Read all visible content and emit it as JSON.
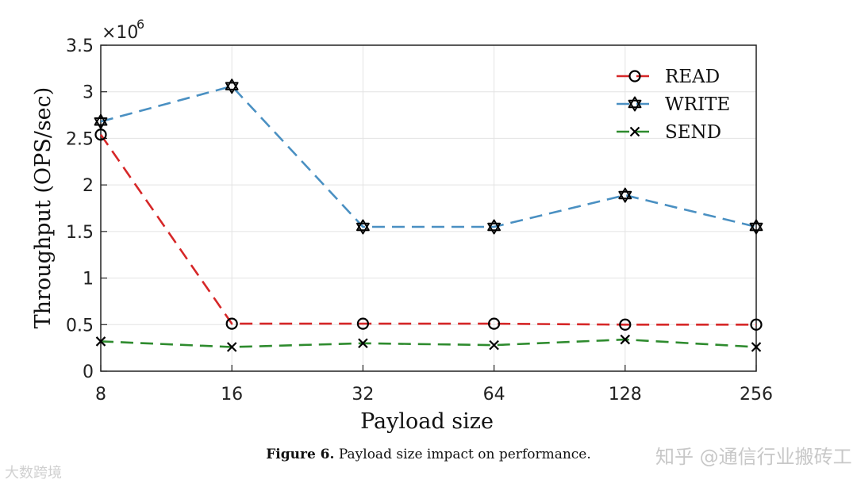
{
  "chart_data": {
    "type": "line",
    "title": "",
    "xlabel": "Payload size",
    "ylabel": "Throughput (OPS/sec)",
    "categories": [
      "8",
      "16",
      "32",
      "64",
      "128",
      "256"
    ],
    "y_tick_labels": [
      "0",
      "0.5",
      "1",
      "1.5",
      "2",
      "2.5",
      "3",
      "3.5"
    ],
    "y_ticks": [
      0,
      0.5,
      1,
      1.5,
      2,
      2.5,
      3,
      3.5
    ],
    "ylim": [
      0,
      3.5
    ],
    "y_multiplier": "×10",
    "y_exponent": "6",
    "grid": true,
    "legend_position": "top-right",
    "series": [
      {
        "name": "READ",
        "color": "#d62728",
        "marker": "circle",
        "values": [
          2.54,
          0.51,
          0.51,
          0.51,
          0.5,
          0.5
        ]
      },
      {
        "name": "WRITE",
        "color": "#4a90c2",
        "marker": "hexagram",
        "values": [
          2.68,
          3.06,
          1.55,
          1.55,
          1.89,
          1.55
        ]
      },
      {
        "name": "SEND",
        "color": "#2e8b2e",
        "marker": "x",
        "values": [
          0.32,
          0.26,
          0.3,
          0.28,
          0.34,
          0.26
        ]
      }
    ]
  },
  "caption": {
    "label": "Figure 6.",
    "text": "Payload size impact on performance."
  },
  "watermarks": {
    "left": "大数跨境",
    "right": "知乎 @通信行业搬砖工"
  }
}
